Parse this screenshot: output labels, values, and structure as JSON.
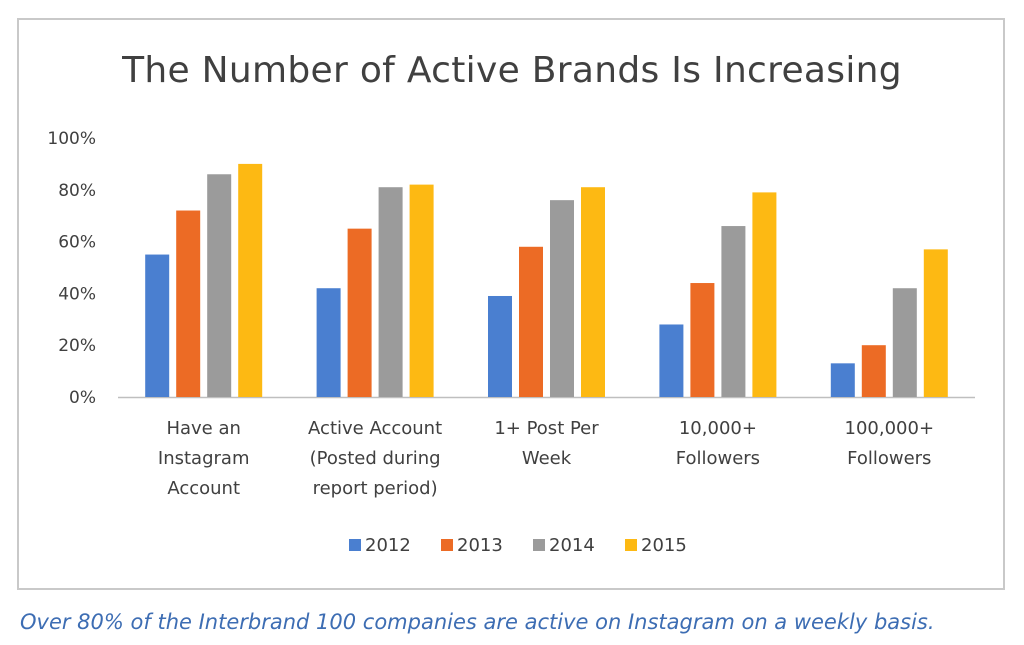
{
  "chart_data": {
    "type": "bar",
    "title": "The Number of Active Brands Is Increasing",
    "categories": [
      [
        "Have an",
        "Instagram",
        "Account"
      ],
      [
        "Active Account",
        "(Posted during",
        "report period)"
      ],
      [
        "1+ Post Per",
        "Week"
      ],
      [
        "10,000+",
        "Followers"
      ],
      [
        "100,000+",
        "Followers"
      ]
    ],
    "series": [
      {
        "name": "2012",
        "color": "#4a7fd0",
        "values": [
          55,
          42,
          39,
          28,
          13
        ]
      },
      {
        "name": "2013",
        "color": "#ec6b25",
        "values": [
          72,
          65,
          58,
          44,
          20
        ]
      },
      {
        "name": "2014",
        "color": "#9b9b9b",
        "values": [
          86,
          81,
          76,
          66,
          42
        ]
      },
      {
        "name": "2015",
        "color": "#fdb913",
        "values": [
          90,
          82,
          81,
          79,
          57
        ]
      }
    ],
    "yticks": [
      "0%",
      "20%",
      "40%",
      "60%",
      "80%",
      "100%"
    ],
    "ylim": [
      0,
      100
    ],
    "xlabel": "",
    "ylabel": "",
    "legend": "bottom-center",
    "grid": false
  },
  "caption": "Over 80% of the Interbrand 100 companies are active on Instagram on a weekly basis."
}
